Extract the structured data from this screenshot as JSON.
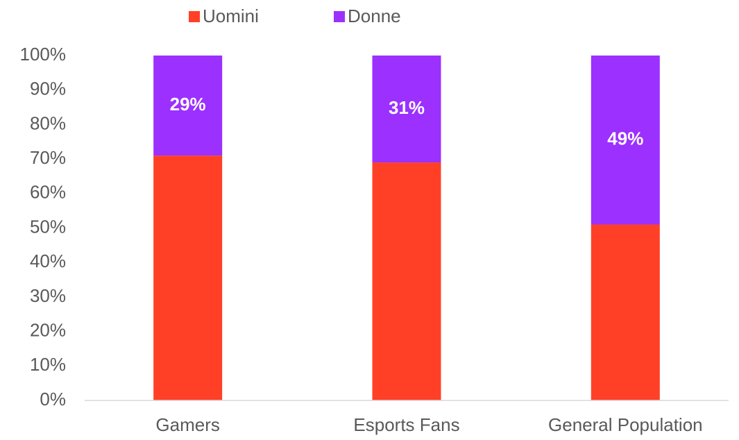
{
  "chart_data": {
    "type": "stacked_bar",
    "categories": [
      "Gamers",
      "Esports Fans",
      "General Population"
    ],
    "series": [
      {
        "name": "Uomini",
        "color": "#ff4027",
        "values": [
          71,
          69,
          51
        ]
      },
      {
        "name": "Donne",
        "color": "#9b30ff",
        "values": [
          29,
          31,
          49
        ],
        "value_labels": [
          "29%",
          "31%",
          "49%"
        ]
      }
    ],
    "ylim": [
      0,
      100
    ],
    "yticks": [
      {
        "value": 0,
        "label": "0%"
      },
      {
        "value": 10,
        "label": "10%"
      },
      {
        "value": 20,
        "label": "20%"
      },
      {
        "value": 30,
        "label": "30%"
      },
      {
        "value": 40,
        "label": "40%"
      },
      {
        "value": 50,
        "label": "50%"
      },
      {
        "value": 60,
        "label": "60%"
      },
      {
        "value": 70,
        "label": "70%"
      },
      {
        "value": 80,
        "label": "80%"
      },
      {
        "value": 90,
        "label": "90%"
      },
      {
        "value": 100,
        "label": "100%"
      }
    ],
    "grid": false,
    "legend": "top"
  }
}
